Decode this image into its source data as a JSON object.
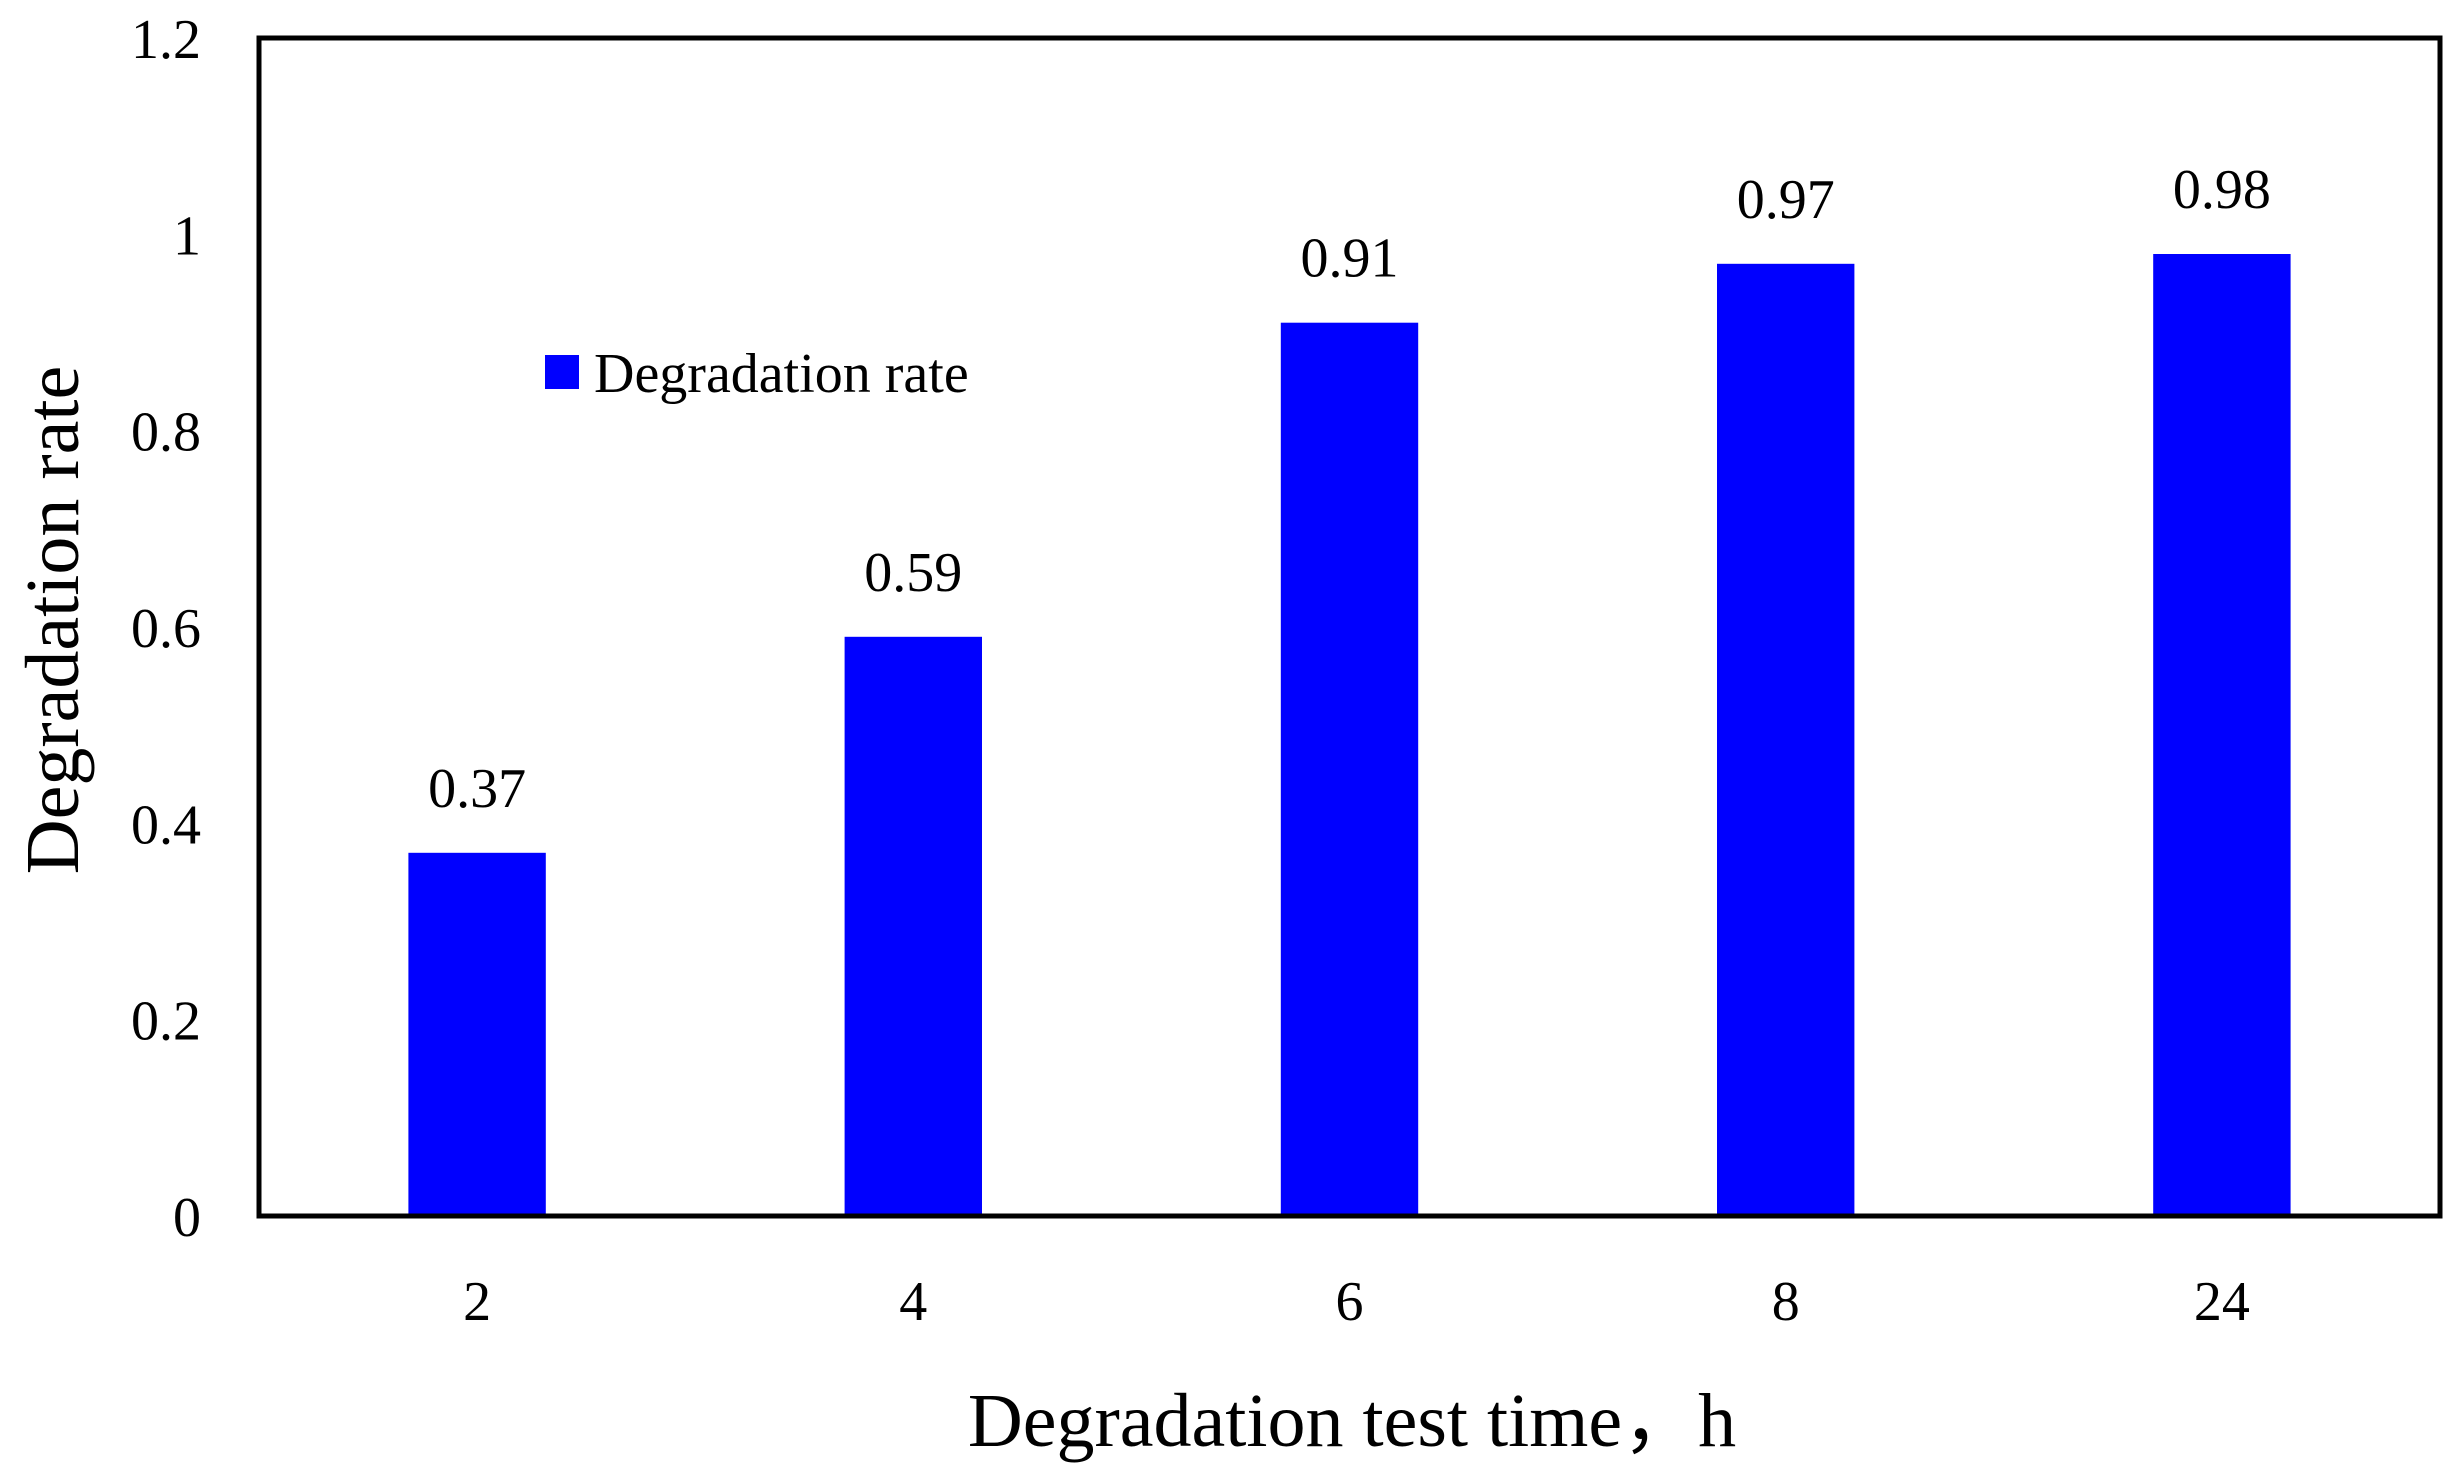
{
  "chart_data": {
    "type": "bar",
    "title": "",
    "xlabel": "Degradation test time，h",
    "ylabel": "Degradation rate",
    "categories": [
      "2",
      "4",
      "6",
      "8",
      "24"
    ],
    "series": [
      {
        "name": "Degradation rate",
        "values": [
          0.37,
          0.59,
          0.91,
          0.97,
          0.98
        ],
        "color": "#0000ff"
      }
    ],
    "data_labels": [
      "0.37",
      "0.59",
      "0.91",
      "0.97",
      "0.98"
    ],
    "ylim": [
      0,
      1.2
    ],
    "yticks": [
      {
        "value": 0,
        "label": "0"
      },
      {
        "value": 0.2,
        "label": "0.2"
      },
      {
        "value": 0.4,
        "label": "0.4"
      },
      {
        "value": 0.6,
        "label": "0.6"
      },
      {
        "value": 0.8,
        "label": "0.8"
      },
      {
        "value": 1,
        "label": "1"
      },
      {
        "value": 1.2,
        "label": "1.2"
      }
    ],
    "grid": false,
    "legend_position": "upper-left"
  }
}
